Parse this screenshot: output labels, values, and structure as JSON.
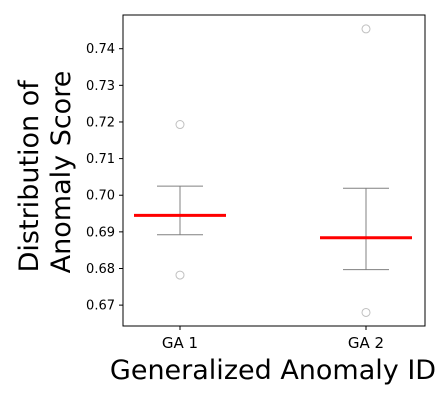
{
  "chart_data": {
    "type": "box",
    "categories": [
      "GA 1",
      "GA 2"
    ],
    "xlabel": "Generalized Anomaly ID",
    "ylabel_lines": [
      "Distribution of",
      "Anomaly Score"
    ],
    "ylim": [
      0.6643,
      0.7492
    ],
    "yticks": [
      0.67,
      0.68,
      0.69,
      0.7,
      0.71,
      0.72,
      0.73,
      0.74
    ],
    "ytick_labels": [
      "0.67",
      "0.68",
      "0.69",
      "0.70",
      "0.71",
      "0.72",
      "0.73",
      "0.74"
    ],
    "boxes": [
      {
        "label": "GA 1",
        "whisker_low": 0.6892,
        "median": 0.6945,
        "whisker_high": 0.7025,
        "outliers": [
          0.7193,
          0.6782
        ]
      },
      {
        "label": "GA 2",
        "whisker_low": 0.6797,
        "median": 0.6884,
        "whisker_high": 0.7019,
        "outliers": [
          0.7454,
          0.668
        ]
      }
    ],
    "colors": {
      "median": "#ff0000",
      "whisker": "#808080",
      "outlier": "#c0c0c0",
      "axis": "#000000"
    },
    "grid": false
  }
}
